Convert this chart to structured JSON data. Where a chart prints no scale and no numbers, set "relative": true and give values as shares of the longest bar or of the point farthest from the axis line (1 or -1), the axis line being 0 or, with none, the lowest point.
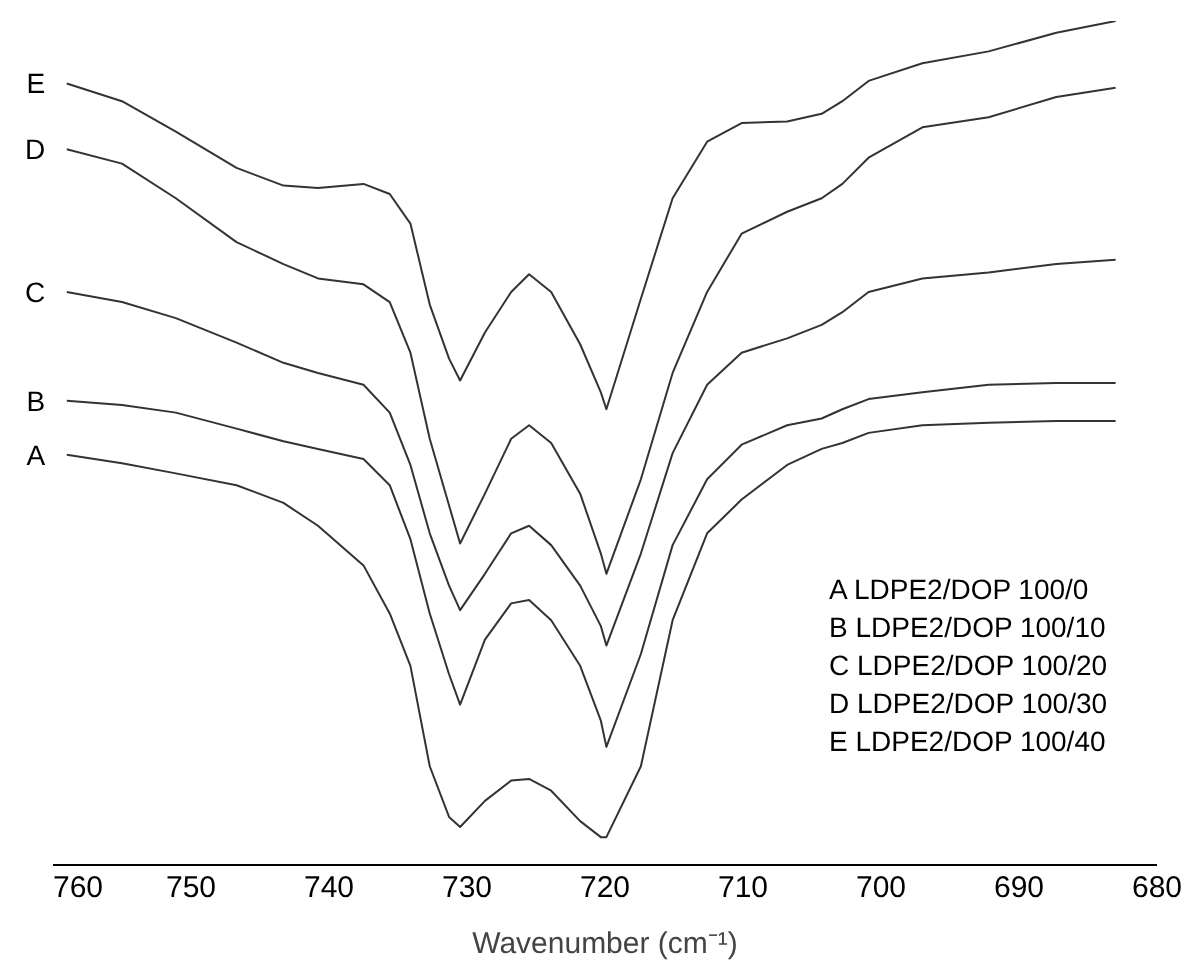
{
  "chart_data": {
    "type": "line",
    "relative": true,
    "xlabel": "Wavenumber (cm⁻¹)",
    "xlim": [
      760,
      680
    ],
    "xticks": [
      760,
      750,
      740,
      730,
      720,
      710,
      700,
      690,
      680
    ],
    "grid": false,
    "line_style": "solid",
    "x": [
      759.0,
      755.0,
      751.1,
      746.7,
      743.3,
      740.8,
      737.5,
      735.6,
      734.1,
      732.7,
      731.3,
      730.5,
      728.7,
      726.8,
      725.5,
      723.9,
      721.8,
      720.3,
      719.9,
      717.4,
      715.1,
      712.6,
      710.1,
      706.8,
      704.3,
      702.8,
      700.9,
      697.0,
      692.2,
      687.3,
      683.0
    ],
    "series": [
      {
        "name": "A",
        "color": "#333333",
        "values": [
          0.486,
          0.476,
          0.464,
          0.45,
          0.429,
          0.402,
          0.355,
          0.298,
          0.236,
          0.117,
          0.057,
          0.045,
          0.076,
          0.1,
          0.102,
          0.088,
          0.052,
          0.033,
          0.033,
          0.117,
          0.29,
          0.393,
          0.433,
          0.474,
          0.493,
          0.5,
          0.512,
          0.521,
          0.524,
          0.526,
          0.526
        ]
      },
      {
        "name": "B",
        "color": "#333333",
        "values": [
          0.55,
          0.545,
          0.536,
          0.517,
          0.502,
          0.493,
          0.481,
          0.45,
          0.386,
          0.298,
          0.226,
          0.19,
          0.267,
          0.31,
          0.314,
          0.29,
          0.236,
          0.171,
          0.14,
          0.25,
          0.379,
          0.457,
          0.498,
          0.521,
          0.529,
          0.54,
          0.552,
          0.56,
          0.569,
          0.571,
          0.571
        ]
      },
      {
        "name": "C",
        "color": "#333333",
        "values": [
          0.679,
          0.667,
          0.648,
          0.619,
          0.595,
          0.583,
          0.569,
          0.536,
          0.474,
          0.393,
          0.331,
          0.302,
          0.345,
          0.393,
          0.402,
          0.379,
          0.331,
          0.283,
          0.26,
          0.369,
          0.488,
          0.569,
          0.607,
          0.624,
          0.64,
          0.655,
          0.679,
          0.695,
          0.702,
          0.712,
          0.717
        ]
      },
      {
        "name": "D",
        "color": "#333333",
        "values": [
          0.848,
          0.831,
          0.79,
          0.738,
          0.712,
          0.695,
          0.688,
          0.667,
          0.607,
          0.505,
          0.426,
          0.381,
          0.44,
          0.505,
          0.521,
          0.5,
          0.44,
          0.369,
          0.345,
          0.457,
          0.583,
          0.679,
          0.748,
          0.774,
          0.79,
          0.807,
          0.838,
          0.874,
          0.886,
          0.91,
          0.921
        ]
      },
      {
        "name": "E",
        "color": "#333333",
        "values": [
          0.926,
          0.905,
          0.869,
          0.826,
          0.805,
          0.802,
          0.807,
          0.795,
          0.76,
          0.664,
          0.6,
          0.574,
          0.631,
          0.679,
          0.7,
          0.679,
          0.617,
          0.56,
          0.54,
          0.671,
          0.79,
          0.857,
          0.879,
          0.881,
          0.89,
          0.905,
          0.929,
          0.95,
          0.964,
          0.986,
          1.0
        ]
      }
    ],
    "annotations": [
      "A  LDPE2/DOP  100/0",
      "B  LDPE2/DOP  100/10",
      "C  LDPE2/DOP  100/20",
      "D  LDPE2/DOP  100/30",
      "E  LDPE2/DOP  100/40"
    ]
  }
}
